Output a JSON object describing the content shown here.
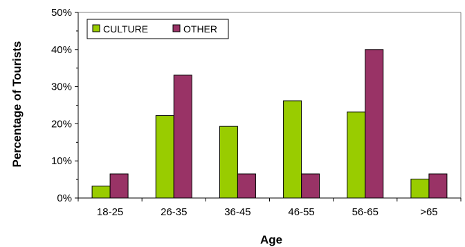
{
  "chart_data": {
    "type": "bar",
    "categories": [
      "18-25",
      "26-35",
      "36-45",
      "46-55",
      "56-65",
      ">65"
    ],
    "series": [
      {
        "name": "CULTURE",
        "color": "#99cc00",
        "values": [
          3.2,
          22.2,
          19.3,
          26.2,
          23.2,
          5.1
        ]
      },
      {
        "name": "OTHER",
        "color": "#993366",
        "values": [
          6.5,
          33.1,
          6.5,
          6.5,
          40.0,
          6.5
        ]
      }
    ],
    "title": "",
    "xlabel": "Age",
    "ylabel": "Percentage of Tourists",
    "ylim": [
      0,
      50
    ],
    "yticks": [
      "0%",
      "10%",
      "20%",
      "30%",
      "40%",
      "50%"
    ],
    "grid": false,
    "legend_position": "top-left"
  }
}
